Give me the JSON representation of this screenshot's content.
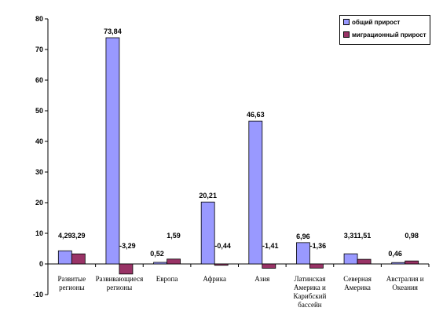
{
  "chart_data": {
    "type": "bar",
    "title": "",
    "xlabel": "",
    "ylabel": "",
    "ylim": [
      -10,
      80
    ],
    "yticks": [
      -10,
      0,
      10,
      20,
      30,
      40,
      50,
      60,
      70,
      80
    ],
    "grid": false,
    "legend_position": "top-right",
    "categories": [
      [
        "Развитые",
        "регионы"
      ],
      [
        "Развивающиеся",
        "регионы"
      ],
      [
        "Европа"
      ],
      [
        "Африка"
      ],
      [
        "Азия"
      ],
      [
        "Латинская",
        "Америка и",
        "Карибский",
        "бассейн"
      ],
      [
        "Северная",
        "Америка"
      ],
      [
        "Австралия и",
        "Океания"
      ]
    ],
    "series": [
      {
        "name": "общий прирост",
        "color": "#9999ff",
        "values": [
          4.29,
          73.84,
          0.52,
          20.21,
          46.63,
          6.96,
          3.31,
          0.46
        ],
        "labels": [
          "4,29",
          "73,84",
          "0,52",
          "20,21",
          "46,63",
          "6,96",
          "3,31",
          "0,46"
        ]
      },
      {
        "name": "миграционный прирост",
        "color": "#993366",
        "values": [
          3.29,
          -3.29,
          1.59,
          -0.44,
          -1.41,
          -1.36,
          1.51,
          0.98
        ],
        "labels": [
          "3,29",
          "-3,29",
          "1,59",
          "-0,44",
          "-1,41",
          "-1,36",
          "1,51",
          "0,98"
        ]
      }
    ]
  }
}
